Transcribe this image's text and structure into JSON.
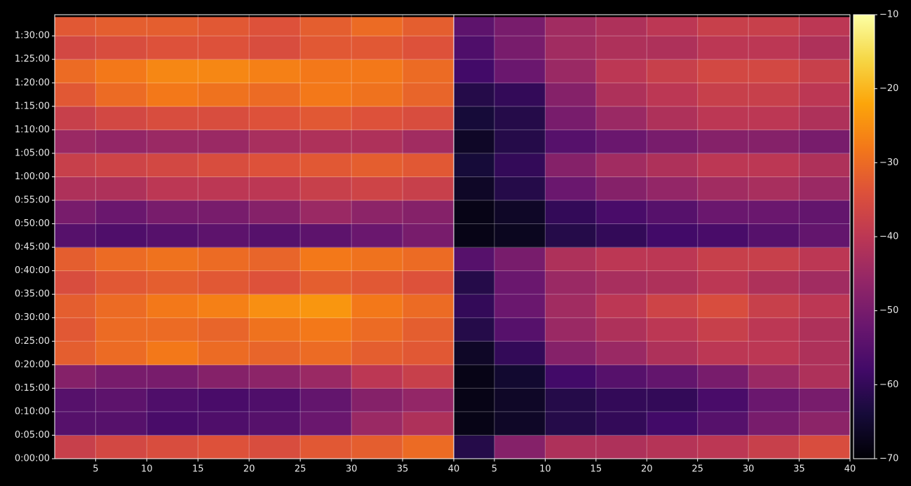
{
  "chart_data": [
    {
      "type": "heatmap",
      "xbins": [
        1,
        5,
        10,
        15,
        20,
        25,
        30,
        35,
        40
      ],
      "ybins": [
        0,
        300,
        600,
        900,
        1200,
        1500,
        1800,
        2100,
        2400,
        2700,
        3000,
        3300,
        3600,
        3900,
        4200,
        4500,
        4800,
        5100,
        5400,
        5640
      ],
      "xlim": [
        1,
        40
      ],
      "ylim": [
        0,
        5670
      ],
      "xticks": [
        5,
        10,
        15,
        20,
        25,
        30,
        35,
        40
      ],
      "yticks": [
        {
          "value": 0,
          "label": "0:00:00"
        },
        {
          "value": 300,
          "label": "0:05:00"
        },
        {
          "value": 600,
          "label": "0:10:00"
        },
        {
          "value": 900,
          "label": "0:15:00"
        },
        {
          "value": 1200,
          "label": "0:20:00"
        },
        {
          "value": 1500,
          "label": "0:25:00"
        },
        {
          "value": 1800,
          "label": "0:30:00"
        },
        {
          "value": 2100,
          "label": "0:35:00"
        },
        {
          "value": 2400,
          "label": "0:40:00"
        },
        {
          "value": 2700,
          "label": "0:45:00"
        },
        {
          "value": 3000,
          "label": "0:50:00"
        },
        {
          "value": 3300,
          "label": "0:55:00"
        },
        {
          "value": 3600,
          "label": "1:00:00"
        },
        {
          "value": 3900,
          "label": "1:05:00"
        },
        {
          "value": 4200,
          "label": "1:10:00"
        },
        {
          "value": 4500,
          "label": "1:15:00"
        },
        {
          "value": 4800,
          "label": "1:20:00"
        },
        {
          "value": 5100,
          "label": "1:25:00"
        },
        {
          "value": 5400,
          "label": "1:30:00"
        }
      ],
      "grid": true,
      "colormap": "inferno",
      "values": [
        [
          -38,
          -36,
          -35,
          -34,
          -35,
          -33,
          -32,
          -30
        ],
        [
          -55,
          -55,
          -57,
          -56,
          -55,
          -52,
          -45,
          -42
        ],
        [
          -55,
          -54,
          -56,
          -57,
          -56,
          -53,
          -48,
          -46
        ],
        [
          -48,
          -50,
          -50,
          -48,
          -47,
          -45,
          -40,
          -38
        ],
        [
          -32,
          -30,
          -28,
          -30,
          -31,
          -30,
          -32,
          -33
        ],
        [
          -33,
          -30,
          -30,
          -31,
          -29,
          -28,
          -30,
          -32
        ],
        [
          -32,
          -30,
          -28,
          -27,
          -25,
          -24,
          -28,
          -30
        ],
        [
          -35,
          -33,
          -32,
          -33,
          -34,
          -32,
          -33,
          -34
        ],
        [
          -32,
          -30,
          -29,
          -30,
          -31,
          -28,
          -29,
          -30
        ],
        [
          -55,
          -56,
          -55,
          -54,
          -55,
          -54,
          -52,
          -50
        ],
        [
          -50,
          -52,
          -50,
          -50,
          -48,
          -45,
          -47,
          -48
        ],
        [
          -42,
          -42,
          -40,
          -40,
          -40,
          -38,
          -37,
          -38
        ],
        [
          -38,
          -37,
          -36,
          -35,
          -34,
          -33,
          -32,
          -33
        ],
        [
          -45,
          -46,
          -45,
          -45,
          -43,
          -42,
          -42,
          -44
        ],
        [
          -38,
          -36,
          -35,
          -35,
          -34,
          -33,
          -34,
          -35
        ],
        [
          -33,
          -30,
          -28,
          -29,
          -30,
          -28,
          -29,
          -31
        ],
        [
          -30,
          -28,
          -26,
          -26,
          -27,
          -28,
          -28,
          -30
        ],
        [
          -36,
          -35,
          -34,
          -34,
          -35,
          -33,
          -33,
          -34
        ],
        [
          -33,
          -32,
          -32,
          -33,
          -34,
          -32,
          -30,
          -32
        ]
      ]
    },
    {
      "type": "heatmap",
      "xbins": [
        1,
        5,
        10,
        15,
        20,
        25,
        30,
        35,
        40
      ],
      "ybins": [
        0,
        300,
        600,
        900,
        1200,
        1500,
        1800,
        2100,
        2400,
        2700,
        3000,
        3300,
        3600,
        3900,
        4200,
        4500,
        4800,
        5100,
        5400,
        5640
      ],
      "xlim": [
        1,
        40
      ],
      "ylim": [
        0,
        5670
      ],
      "xticks": [
        5,
        10,
        15,
        20,
        25,
        30,
        35,
        40
      ],
      "grid": true,
      "colormap": "inferno",
      "values": [
        [
          -62,
          -48,
          -42,
          -42,
          -41,
          -40,
          -38,
          -35
        ],
        [
          -68,
          -66,
          -62,
          -60,
          -58,
          -55,
          -50,
          -47
        ],
        [
          -68,
          -66,
          -62,
          -60,
          -60,
          -57,
          -52,
          -50
        ],
        [
          -68,
          -65,
          -58,
          -55,
          -53,
          -50,
          -45,
          -42
        ],
        [
          -66,
          -60,
          -48,
          -45,
          -42,
          -40,
          -40,
          -42
        ],
        [
          -62,
          -55,
          -45,
          -42,
          -40,
          -38,
          -40,
          -42
        ],
        [
          -60,
          -52,
          -44,
          -40,
          -37,
          -35,
          -38,
          -40
        ],
        [
          -62,
          -52,
          -45,
          -43,
          -42,
          -40,
          -42,
          -44
        ],
        [
          -55,
          -50,
          -42,
          -40,
          -40,
          -38,
          -38,
          -40
        ],
        [
          -68,
          -67,
          -62,
          -60,
          -58,
          -57,
          -55,
          -53
        ],
        [
          -68,
          -66,
          -60,
          -57,
          -55,
          -52,
          -52,
          -53
        ],
        [
          -66,
          -62,
          -52,
          -48,
          -46,
          -44,
          -43,
          -45
        ],
        [
          -64,
          -60,
          -48,
          -44,
          -42,
          -40,
          -40,
          -42
        ],
        [
          -66,
          -62,
          -55,
          -52,
          -50,
          -48,
          -48,
          -50
        ],
        [
          -64,
          -62,
          -50,
          -45,
          -42,
          -40,
          -40,
          -42
        ],
        [
          -62,
          -60,
          -48,
          -42,
          -40,
          -38,
          -38,
          -40
        ],
        [
          -58,
          -52,
          -45,
          -40,
          -38,
          -36,
          -36,
          -38
        ],
        [
          -56,
          -50,
          -44,
          -42,
          -42,
          -40,
          -40,
          -42
        ],
        [
          -54,
          -50,
          -44,
          -42,
          -40,
          -38,
          -38,
          -40
        ]
      ]
    }
  ],
  "colorbar": {
    "lim": [
      -70,
      -10
    ],
    "ticks": [
      {
        "value": -70,
        "label": "−70"
      },
      {
        "value": -60,
        "label": "−60"
      },
      {
        "value": -50,
        "label": "−50"
      },
      {
        "value": -40,
        "label": "−40"
      },
      {
        "value": -30,
        "label": "−30"
      },
      {
        "value": -20,
        "label": "−20"
      },
      {
        "value": -10,
        "label": "−10"
      }
    ]
  }
}
